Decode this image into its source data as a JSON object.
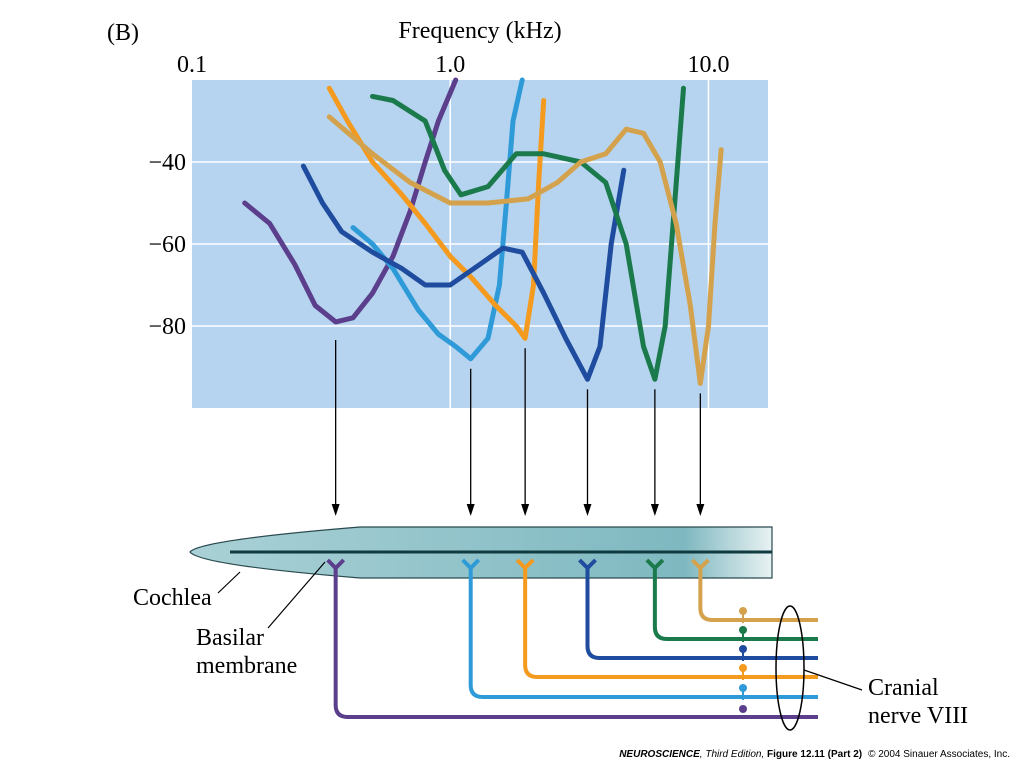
{
  "chart_data": {
    "type": "line",
    "panel_label": "(B)",
    "x_label": "Frequency (kHz)",
    "xscale": "log",
    "xlim": [
      0.1,
      17
    ],
    "xticks": [
      0.1,
      {
        "value": 1,
        "label": "1.0"
      },
      {
        "value": 10,
        "label": "10.0"
      }
    ],
    "ylim": [
      -100,
      -20
    ],
    "yticks": [
      {
        "value": -40,
        "label": "−40"
      },
      {
        "value": -60,
        "label": "−60"
      },
      {
        "value": -80,
        "label": "−80"
      }
    ],
    "grid": true,
    "series": [
      {
        "color": "#5b3f8c",
        "x": [
          0.16,
          0.2,
          0.25,
          0.3,
          0.36,
          0.42,
          0.5,
          0.6,
          0.7,
          0.8,
          0.9,
          1.05
        ],
        "values": [
          -50,
          -55,
          -65,
          -75,
          -79,
          -78,
          -72,
          -63,
          -52,
          -40,
          -30,
          -20
        ]
      },
      {
        "color": "#2e9bd8",
        "x": [
          0.42,
          0.5,
          0.6,
          0.75,
          0.9,
          1.05,
          1.2,
          1.4,
          1.55,
          1.65,
          1.75,
          1.9
        ],
        "values": [
          -56,
          -60,
          -66,
          -76,
          -82,
          -85,
          -88,
          -83,
          -70,
          -50,
          -30,
          -20
        ]
      },
      {
        "color": "#f39a1f",
        "x": [
          0.34,
          0.4,
          0.5,
          0.65,
          0.8,
          1.0,
          1.2,
          1.5,
          1.8,
          1.95,
          2.1,
          2.2,
          2.3
        ],
        "values": [
          -22,
          -30,
          -40,
          -48,
          -55,
          -63,
          -68,
          -75,
          -80,
          -83,
          -70,
          -45,
          -25
        ]
      },
      {
        "color": "#1f4c9e",
        "x": [
          0.27,
          0.32,
          0.38,
          0.5,
          0.65,
          0.8,
          1.0,
          1.3,
          1.6,
          1.9,
          2.3,
          2.8,
          3.4,
          3.8,
          4.2,
          4.7
        ],
        "values": [
          -41,
          -50,
          -57,
          -62,
          -66,
          -70,
          -70,
          -65,
          -61,
          -62,
          -72,
          -83,
          -93,
          -85,
          -60,
          -42
        ]
      },
      {
        "color": "#1b7a4b",
        "x": [
          0.5,
          0.6,
          0.8,
          0.95,
          1.1,
          1.4,
          1.8,
          2.3,
          3.2,
          4.0,
          4.8,
          5.6,
          6.2,
          6.8,
          7.4,
          8.0
        ],
        "values": [
          -24,
          -25,
          -30,
          -42,
          -48,
          -46,
          -38,
          -38,
          -40,
          -45,
          -60,
          -85,
          -93,
          -80,
          -50,
          -22
        ]
      },
      {
        "color": "#d4a24c",
        "x": [
          0.34,
          0.5,
          0.7,
          1.0,
          1.4,
          2.0,
          2.6,
          3.2,
          4.0,
          4.8,
          5.6,
          6.5,
          7.5,
          8.5,
          9.3,
          10.0,
          10.6,
          11.2
        ],
        "values": [
          -29,
          -38,
          -45,
          -50,
          -50,
          -49,
          -45,
          -40,
          -38,
          -32,
          -33,
          -40,
          -55,
          -75,
          -94,
          -80,
          -55,
          -37
        ]
      }
    ]
  },
  "diagram": {
    "cochlea": "Cochlea",
    "basilar": [
      "Basilar",
      "membrane"
    ],
    "nerve": [
      "Cranial",
      "nerve VIII"
    ]
  },
  "footer": {
    "book": "NEUROSCIENCE",
    "edition": ", Third Edition, ",
    "figure": "Figure 12.11 (Part 2)",
    "copyright": "© 2004 Sinauer Associates, Inc."
  }
}
